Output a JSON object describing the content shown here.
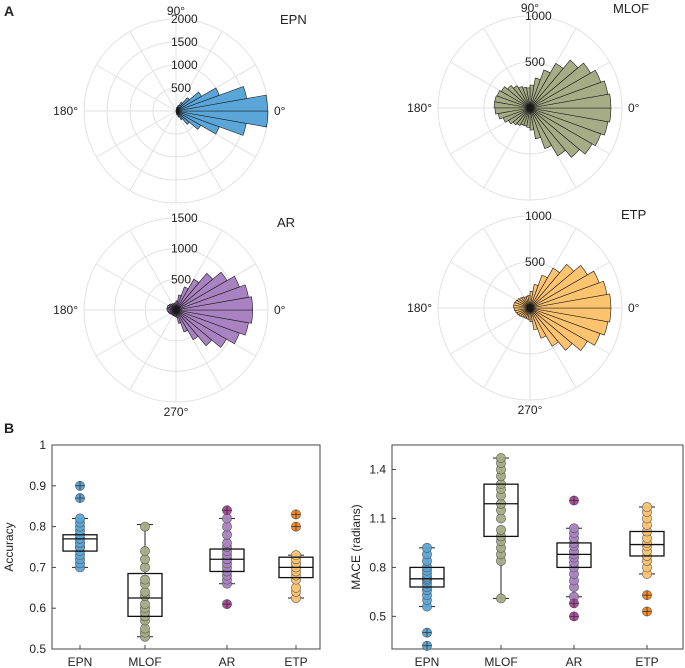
{
  "figure": {
    "panel_a_label": "A",
    "panel_b_label": "B"
  },
  "chart_data": [
    {
      "type": "polar_histogram",
      "title": "EPN",
      "color": "#5aa6d9",
      "rlim": [
        0,
        2000
      ],
      "r_ticks": [
        "500",
        "1000",
        "1500",
        "2000"
      ],
      "angle_labels": [
        "0°",
        "90°",
        "180°"
      ],
      "bin_centers_deg": [
        -75,
        -65,
        -55,
        -45,
        -35,
        -25,
        -15,
        -5,
        5,
        15,
        25,
        35,
        45,
        55,
        65,
        75
      ],
      "values": [
        80,
        140,
        220,
        380,
        620,
        1000,
        1550,
        2000,
        1990,
        1560,
        1000,
        640,
        380,
        220,
        130,
        80
      ]
    },
    {
      "type": "polar_histogram",
      "title": "MLOF",
      "color": "#a6ac85",
      "rlim": [
        0,
        1000
      ],
      "r_ticks": [
        "500",
        "1000"
      ],
      "angle_labels": [
        "0°",
        "90°",
        "180°"
      ],
      "bin_centers_deg": [
        -85,
        -75,
        -65,
        -55,
        -45,
        -35,
        -25,
        -15,
        -5,
        5,
        15,
        25,
        35,
        45,
        55,
        65,
        75,
        85,
        95,
        105,
        115,
        125,
        135,
        145,
        155,
        165,
        175,
        185,
        195,
        205,
        215,
        225,
        235,
        245,
        255,
        265
      ],
      "values": [
        240,
        340,
        470,
        600,
        700,
        780,
        820,
        860,
        880,
        880,
        860,
        820,
        760,
        680,
        560,
        440,
        330,
        250,
        220,
        230,
        250,
        280,
        320,
        360,
        380,
        390,
        390,
        380,
        350,
        310,
        270,
        240,
        220,
        200,
        200,
        210
      ]
    },
    {
      "type": "polar_histogram",
      "title": "AR",
      "color": "#a982c2",
      "rlim": [
        0,
        1500
      ],
      "r_ticks": [
        "500",
        "1000",
        "1500"
      ],
      "angle_labels": [
        "0°",
        "180°",
        "270°"
      ],
      "bin_centers_deg": [
        -85,
        -75,
        -65,
        -55,
        -45,
        -35,
        -25,
        -15,
        -5,
        5,
        15,
        25,
        35,
        45,
        55,
        65,
        75,
        85,
        95,
        105,
        115,
        125,
        135,
        145,
        155,
        165,
        175,
        185,
        195,
        205,
        215,
        225,
        235,
        245,
        255,
        265
      ],
      "values": [
        120,
        220,
        380,
        560,
        760,
        950,
        1100,
        1200,
        1250,
        1250,
        1200,
        1100,
        960,
        780,
        580,
        400,
        250,
        150,
        120,
        110,
        110,
        120,
        130,
        140,
        150,
        150,
        150,
        140,
        130,
        120,
        110,
        100,
        100,
        100,
        100,
        110
      ]
    },
    {
      "type": "polar_histogram",
      "title": "ETP",
      "color": "#fdc36f",
      "rlim": [
        0,
        1000
      ],
      "r_ticks": [
        "500",
        "1000"
      ],
      "angle_labels": [
        "0°",
        "180°",
        "270°"
      ],
      "bin_centers_deg": [
        -85,
        -75,
        -65,
        -55,
        -45,
        -35,
        -25,
        -15,
        -5,
        5,
        15,
        25,
        35,
        45,
        55,
        65,
        75,
        85,
        95,
        105,
        115,
        125,
        135,
        145,
        155,
        165,
        175,
        185,
        195,
        205,
        215,
        225,
        235,
        245,
        255,
        265
      ],
      "values": [
        150,
        240,
        350,
        480,
        600,
        720,
        810,
        860,
        880,
        880,
        850,
        800,
        720,
        620,
        500,
        380,
        260,
        180,
        140,
        130,
        130,
        140,
        150,
        160,
        170,
        180,
        180,
        170,
        160,
        150,
        140,
        130,
        120,
        120,
        120,
        130
      ]
    },
    {
      "type": "boxplot",
      "ylabel": "Accuracy",
      "ylim": [
        0.5,
        1.0
      ],
      "y_ticks": [
        "0.5",
        "0.6",
        "0.7",
        "0.8",
        "0.9",
        "1"
      ],
      "categories": [
        "EPN",
        "MLOF",
        "AR",
        "ETP"
      ],
      "colors": [
        "#5aa6d9",
        "#a6ac85",
        "#a982c2",
        "#fdc36f"
      ],
      "outlier_colors": [
        "#5aa6d9",
        "#a6ac85",
        "#b04aa0",
        "#ff8a1e"
      ],
      "boxes": [
        {
          "q1": 0.74,
          "median": 0.77,
          "q3": 0.78,
          "whisker_low": 0.7,
          "whisker_high": 0.82,
          "points": [
            0.7,
            0.71,
            0.72,
            0.73,
            0.74,
            0.75,
            0.75,
            0.76,
            0.76,
            0.77,
            0.77,
            0.78,
            0.78,
            0.79,
            0.8,
            0.81,
            0.82
          ],
          "outliers": [
            0.9,
            0.87
          ]
        },
        {
          "q1": 0.58,
          "median": 0.625,
          "q3": 0.685,
          "whisker_low": 0.53,
          "whisker_high": 0.805,
          "points": [
            0.53,
            0.54,
            0.55,
            0.57,
            0.58,
            0.59,
            0.6,
            0.61,
            0.63,
            0.64,
            0.66,
            0.67,
            0.7,
            0.72,
            0.74,
            0.8
          ],
          "outliers": []
        },
        {
          "q1": 0.69,
          "median": 0.72,
          "q3": 0.745,
          "whisker_low": 0.66,
          "whisker_high": 0.82,
          "points": [
            0.66,
            0.67,
            0.68,
            0.69,
            0.7,
            0.71,
            0.72,
            0.72,
            0.73,
            0.74,
            0.75,
            0.76,
            0.78,
            0.8,
            0.82
          ],
          "outliers": [
            0.61,
            0.84
          ]
        },
        {
          "q1": 0.675,
          "median": 0.7,
          "q3": 0.725,
          "whisker_low": 0.625,
          "whisker_high": 0.73,
          "points": [
            0.625,
            0.64,
            0.65,
            0.67,
            0.68,
            0.69,
            0.7,
            0.7,
            0.71,
            0.72,
            0.73
          ],
          "outliers": [
            0.83,
            0.8
          ]
        }
      ]
    },
    {
      "type": "boxplot",
      "ylabel": "MACE (radians)",
      "ylim": [
        0.3,
        1.55
      ],
      "y_ticks": [
        "0.5",
        "0.8",
        "1.1",
        "1.4"
      ],
      "categories": [
        "EPN",
        "MLOF",
        "AR",
        "ETP"
      ],
      "colors": [
        "#5aa6d9",
        "#a6ac85",
        "#a982c2",
        "#fdc36f"
      ],
      "outlier_colors": [
        "#5aa6d9",
        "#a6ac85",
        "#b04aa0",
        "#ff8a1e"
      ],
      "boxes": [
        {
          "q1": 0.68,
          "median": 0.73,
          "q3": 0.8,
          "whisker_low": 0.56,
          "whisker_high": 0.92,
          "points": [
            0.56,
            0.6,
            0.63,
            0.66,
            0.68,
            0.7,
            0.72,
            0.73,
            0.74,
            0.76,
            0.78,
            0.8,
            0.84,
            0.88,
            0.92
          ],
          "outliers": [
            0.4,
            0.32
          ]
        },
        {
          "q1": 0.99,
          "median": 1.19,
          "q3": 1.31,
          "whisker_low": 0.61,
          "whisker_high": 1.47,
          "points": [
            0.61,
            0.84,
            0.88,
            0.92,
            0.96,
            0.99,
            1.03,
            1.1,
            1.15,
            1.19,
            1.24,
            1.28,
            1.31,
            1.36,
            1.4,
            1.44,
            1.47
          ],
          "outliers": []
        },
        {
          "q1": 0.8,
          "median": 0.88,
          "q3": 0.95,
          "whisker_low": 0.62,
          "whisker_high": 1.04,
          "points": [
            0.62,
            0.68,
            0.72,
            0.76,
            0.8,
            0.83,
            0.86,
            0.88,
            0.9,
            0.93,
            0.95,
            0.98,
            1.01,
            1.04
          ],
          "outliers": [
            0.5,
            0.58,
            1.21
          ]
        },
        {
          "q1": 0.87,
          "median": 0.94,
          "q3": 1.02,
          "whisker_low": 0.76,
          "whisker_high": 1.17,
          "points": [
            0.76,
            0.8,
            0.84,
            0.87,
            0.9,
            0.93,
            0.95,
            0.98,
            1.02,
            1.06,
            1.1,
            1.14,
            1.17
          ],
          "outliers": [
            0.63,
            0.53
          ]
        }
      ]
    }
  ]
}
